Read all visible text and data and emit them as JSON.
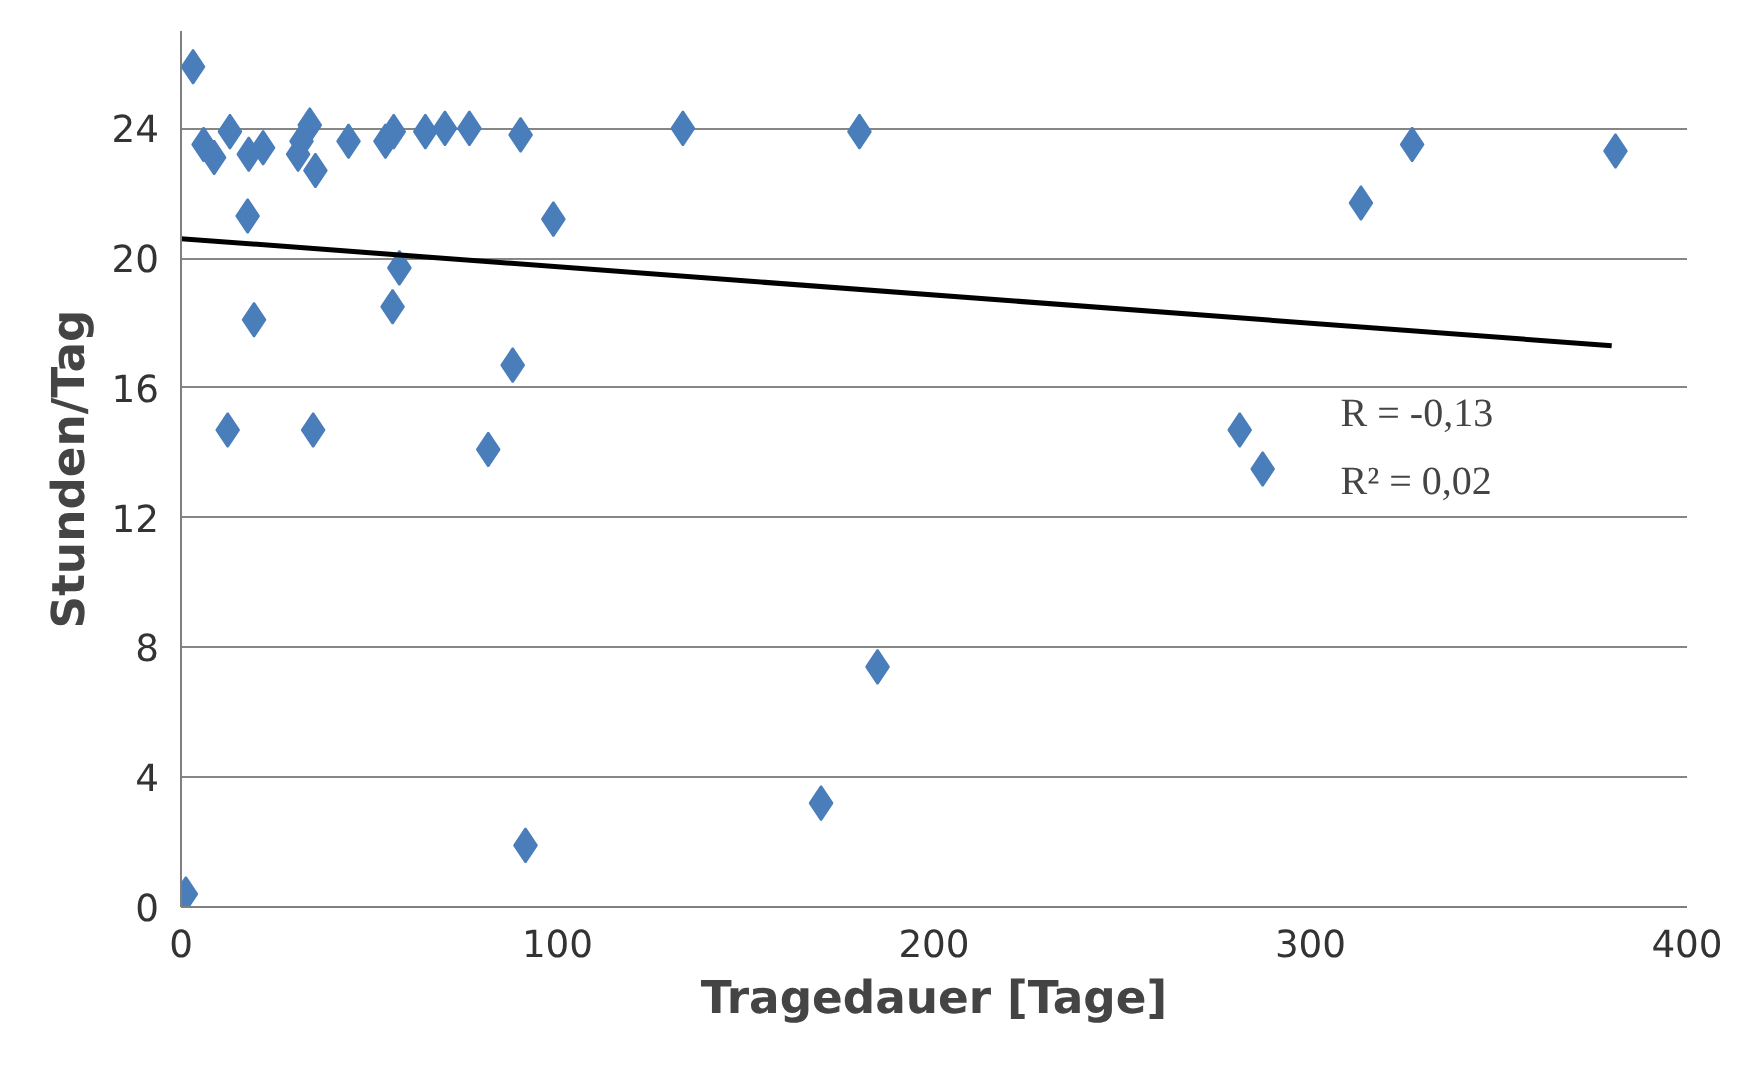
{
  "chart_data": {
    "type": "scatter",
    "xlabel": "Tragedauer [Tage]",
    "ylabel": "Stunden/Tag",
    "xlim": [
      0,
      400
    ],
    "ylim": [
      0,
      27
    ],
    "xticks": [
      0,
      100,
      200,
      300,
      400
    ],
    "yticks": [
      0,
      4,
      8,
      12,
      16,
      20,
      24
    ],
    "grid": "y",
    "series": [
      {
        "color": "#4a7ebb",
        "marker": "diamond",
        "x": [
          3.2,
          6.0,
          8.8,
          13.0,
          18.0,
          21.8,
          31.1,
          32,
          34.2,
          35.7,
          44.5,
          54.3,
          56.5,
          64.9,
          70.1,
          76.6,
          90.2,
          133.3,
          180.2,
          17.7,
          98.9,
          58.0,
          19.4,
          56.2,
          88.1,
          12.4,
          35.1,
          81.6,
          1.3,
          91.5,
          170,
          185,
          327,
          313.4,
          381,
          281.2,
          287.3
        ],
        "values": [
          25.9,
          23.5,
          23.1,
          23.9,
          23.2,
          23.4,
          23.2,
          23.6,
          24.1,
          22.7,
          23.6,
          23.6,
          23.9,
          23.9,
          24.0,
          24.0,
          23.8,
          24.0,
          23.9,
          21.3,
          21.2,
          19.7,
          18.1,
          18.5,
          16.7,
          14.7,
          14.7,
          14.1,
          0.4,
          1.9,
          3.2,
          7.4,
          23.5,
          21.7,
          23.3,
          14.7,
          13.5
        ]
      },
      {
        "type": "line",
        "color": "#000000",
        "x": [
          0,
          380
        ],
        "values": [
          20.6,
          17.3
        ]
      }
    ],
    "annotations": [
      "R  = -0,13",
      "R² =  0,02"
    ]
  }
}
